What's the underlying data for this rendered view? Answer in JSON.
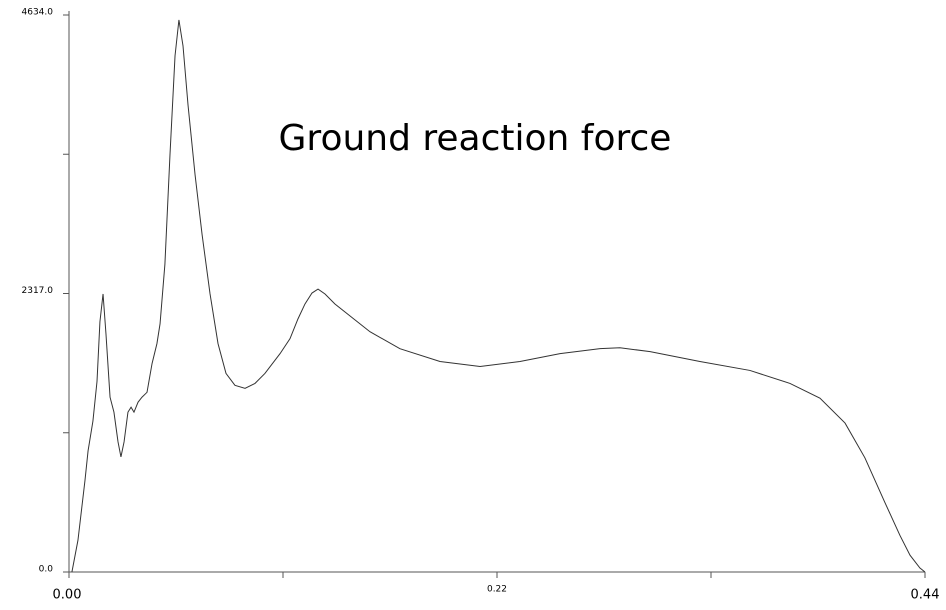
{
  "chart_data": {
    "type": "line",
    "title": "Ground reaction force",
    "x": [
      0.0015,
      0.0046,
      0.0082,
      0.0098,
      0.0123,
      0.0144,
      0.0159,
      0.0175,
      0.019,
      0.0211,
      0.0231,
      0.0252,
      0.0267,
      0.0283,
      0.0303,
      0.0319,
      0.0334,
      0.0355,
      0.0375,
      0.0401,
      0.0427,
      0.0452,
      0.0468,
      0.0493,
      0.0519,
      0.0545,
      0.0565,
      0.0586,
      0.0612,
      0.0648,
      0.0684,
      0.0725,
      0.0766,
      0.0807,
      0.0853,
      0.0905,
      0.0956,
      0.1007,
      0.1085,
      0.1136,
      0.1177,
      0.1213,
      0.1249,
      0.128,
      0.1316,
      0.1367,
      0.1444,
      0.1547,
      0.1701,
      0.1907,
      0.2113,
      0.2318,
      0.2524,
      0.273,
      0.2832,
      0.2987,
      0.3243,
      0.35,
      0.3706,
      0.386,
      0.3989,
      0.4091,
      0.4194,
      0.4271,
      0.4323,
      0.4374,
      0.44
    ],
    "series": [
      {
        "color": "#333333",
        "values": [
          0,
          264,
          760,
          1008,
          1256,
          1586,
          2082,
          2313,
          1982,
          1454,
          1330,
          1082,
          958,
          1082,
          1330,
          1371,
          1330,
          1413,
          1454,
          1495,
          1735,
          1900,
          2065,
          2561,
          3469,
          4295,
          4593,
          4378,
          3882,
          3304,
          2808,
          2313,
          1900,
          1652,
          1553,
          1528,
          1569,
          1652,
          1817,
          1941,
          2106,
          2230,
          2321,
          2354,
          2313,
          2230,
          2131,
          1999,
          1858,
          1751,
          1710,
          1751,
          1817,
          1858,
          1866,
          1833,
          1751,
          1677,
          1569,
          1446,
          1239,
          950,
          578,
          305,
          140,
          33,
          0
        ]
      }
    ],
    "xlim": [
      0,
      0.44
    ],
    "xticks": [
      {
        "value": 0,
        "label": "0.00"
      },
      0.22,
      0.44
    ],
    "xminorticks": [
      0.11,
      0.33
    ],
    "ylim": [
      0,
      4634
    ],
    "yticks": [
      {
        "value": 0,
        "label": "0.0"
      },
      {
        "value": 2317,
        "label": "2317.0"
      },
      {
        "value": 4634,
        "label": "4634.0"
      }
    ],
    "yminorticks": [
      1158.5,
      3475.5
    ]
  }
}
